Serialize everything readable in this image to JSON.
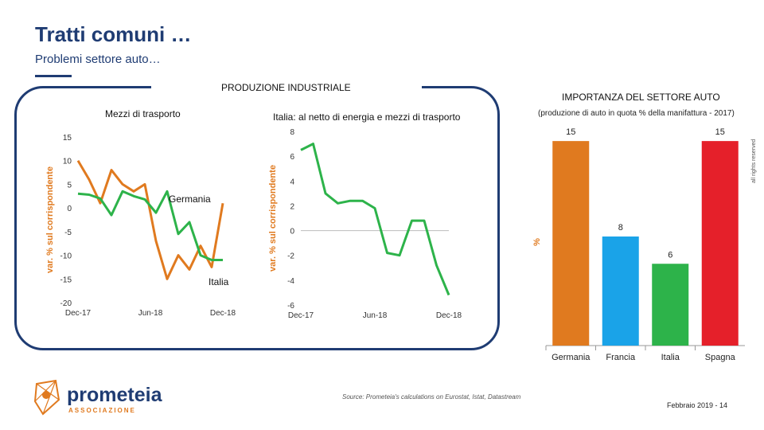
{
  "header": {
    "title": "Tratti comuni …",
    "subtitle": "Problemi settore auto…"
  },
  "production_panel": {
    "title": "PRODUZIONE INDUSTRIALE"
  },
  "importance_panel": {
    "title": "IMPORTANZA DEL SETTORE AUTO",
    "subtitle": "(produzione di auto in quota % della manifattura - 2017)",
    "rights": "all rights reserved"
  },
  "footer": {
    "source": "Source: Prometeia's calculations on Eurostat, Istat, Datastream",
    "date_page": "Febbraio 2019 - 14",
    "logo_name": "prometeia",
    "logo_sub": "ASSOCIAZIONE"
  },
  "colors": {
    "brand": "#1f3c73",
    "orange": "#e07a1f",
    "green": "#2db34a",
    "blue": "#1aa3e8",
    "red": "#e5202a"
  },
  "chart_data": [
    {
      "type": "line",
      "title": "Mezzi di trasporto",
      "ylabel": "var. % sul corrispondente",
      "ylim": [
        -20,
        15
      ],
      "yticks": [
        "15",
        "10",
        "5",
        "0",
        "-5",
        "-10",
        "-15",
        "-20"
      ],
      "xticks": [
        "Dec-17",
        "Jun-18",
        "Dec-18"
      ],
      "series": [
        {
          "name": "Germania",
          "color": "#e07a1f",
          "values": [
            10,
            6,
            1,
            8,
            5,
            3.5,
            5,
            -7,
            -15,
            -10,
            -13,
            -8,
            -12.5,
            1
          ]
        },
        {
          "name": "Italia",
          "color": "#2db34a",
          "values": [
            3,
            2.8,
            2,
            -1.5,
            3.5,
            2.5,
            1.8,
            -1,
            3.5,
            -5.5,
            -3,
            -10,
            -11,
            -11
          ]
        }
      ]
    },
    {
      "type": "line",
      "title": "Italia: al netto di energia e mezzi di trasporto",
      "ylabel": "var. % sul corrispondente",
      "ylim": [
        -6,
        8
      ],
      "yticks": [
        "8",
        "6",
        "4",
        "2",
        "0",
        "-2",
        "-4",
        "-6"
      ],
      "xticks": [
        "Dec-17",
        "Jun-18",
        "Dec-18"
      ],
      "series": [
        {
          "name": "",
          "color": "#2db34a",
          "values": [
            6.5,
            7,
            3,
            2.2,
            2.4,
            2.4,
            1.8,
            -1.8,
            -2,
            0.8,
            0.8,
            -2.8,
            -5.2
          ]
        }
      ]
    },
    {
      "type": "bar",
      "title": "IMPORTANZA DEL SETTORE AUTO",
      "ylabel": "%",
      "ylim": [
        0,
        16
      ],
      "categories": [
        "Germania",
        "Francia",
        "Italia",
        "Spagna"
      ],
      "values": [
        15,
        8,
        6,
        15
      ],
      "labels": [
        "15",
        "8",
        "6",
        "15"
      ],
      "colors": [
        "#e07a1f",
        "#1aa3e8",
        "#2db34a",
        "#e5202a"
      ]
    }
  ]
}
